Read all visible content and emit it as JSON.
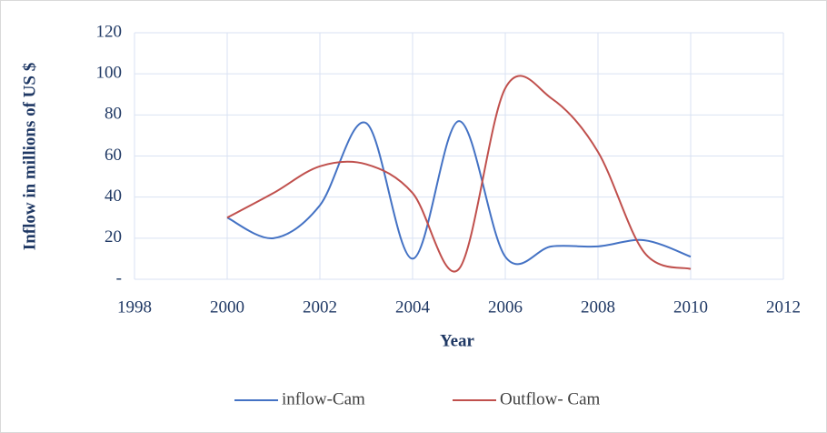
{
  "chart_data": {
    "type": "line",
    "x_label": "Year",
    "y_label": "Inflow in millions of US $",
    "x": [
      2000,
      2001,
      2002,
      2003,
      2004,
      2005,
      2006,
      2007,
      2008,
      2009,
      2010
    ],
    "series": [
      {
        "name": "inflow-Cam",
        "color": "#4472c4",
        "values": [
          30,
          20,
          36,
          76,
          10,
          77,
          11,
          16,
          16,
          19,
          11
        ]
      },
      {
        "name": "Outflow- Cam",
        "color": "#c0504d",
        "values": [
          30,
          42,
          55,
          56,
          42,
          5,
          93,
          88,
          62,
          13,
          5
        ]
      }
    ],
    "xlim": [
      1998,
      2012
    ],
    "xticks": [
      1998,
      2000,
      2002,
      2004,
      2006,
      2008,
      2010,
      2012
    ],
    "ylim": [
      0,
      120
    ],
    "yticks": [
      {
        "value": 0,
        "label": "-"
      },
      20,
      40,
      60,
      80,
      100,
      120
    ],
    "grid": true,
    "smooth": true,
    "legend": "bottom"
  }
}
